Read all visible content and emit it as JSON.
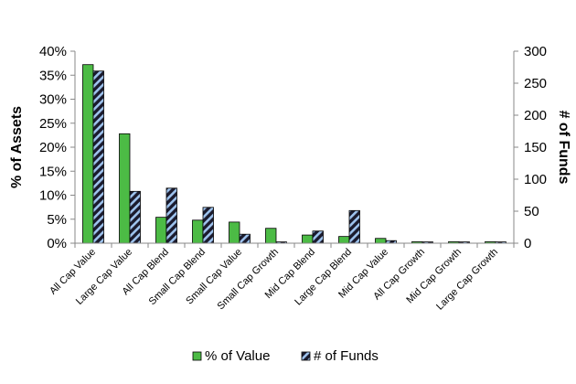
{
  "chart_data": {
    "type": "bar",
    "categories": [
      "All Cap Value",
      "Large Cap Value",
      "All Cap Blend",
      "Small Cap Blend",
      "Small Cap Value",
      "Small Cap Growth",
      "Mid Cap Blend",
      "Large Cap Blend",
      "Mid Cap Value",
      "All Cap Growth",
      "Mid Cap Growth",
      "Large Cap Growth"
    ],
    "series": [
      {
        "name": "% of Value",
        "axis": "left",
        "unit": "%",
        "color": "#4cbb45",
        "pattern": "solid",
        "values": [
          37.2,
          22.8,
          5.4,
          4.8,
          4.4,
          3.1,
          1.7,
          1.4,
          1.0,
          0.3,
          0.3,
          0.3
        ]
      },
      {
        "name": "# of Funds",
        "axis": "right",
        "color": "#1b1b2e",
        "stripe_color": "#9ec3ee",
        "pattern": "diagonal-stripes",
        "values": [
          269,
          81,
          86,
          56,
          14,
          2,
          19,
          51,
          4,
          2,
          2,
          2
        ]
      }
    ],
    "y_left": {
      "label": "% of Assets",
      "range": [
        0,
        40
      ],
      "ticks": [
        "0%",
        "5%",
        "10%",
        "15%",
        "20%",
        "25%",
        "30%",
        "35%",
        "40%"
      ]
    },
    "y_right": {
      "label": "# of Funds",
      "range": [
        0,
        300
      ],
      "ticks": [
        "0",
        "50",
        "100",
        "150",
        "200",
        "250",
        "300"
      ]
    },
    "xlabel": "",
    "grid": false,
    "legend_position": "bottom"
  }
}
